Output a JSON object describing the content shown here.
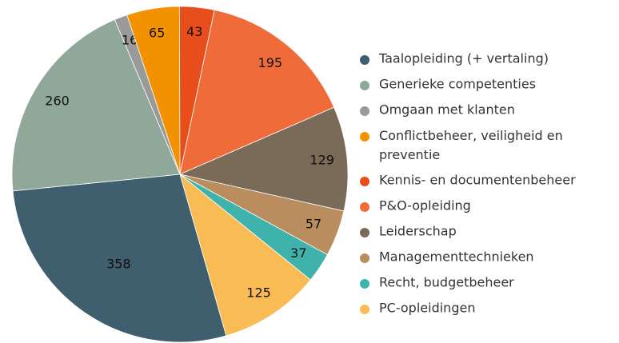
{
  "chart_data": {
    "type": "pie",
    "categories": [
      "Taalopleiding (+ vertaling)",
      "Generieke competenties",
      "Omgaan met klanten",
      "Conflictbeheer, veiligheid en preventie",
      "Kennis- en documentenbeheer",
      "P&O-opleiding",
      "Leiderschap",
      "Managementtechnieken",
      "Recht, budgetbeheer",
      "PC-opleidingen"
    ],
    "values": [
      358,
      260,
      16,
      65,
      43,
      195,
      129,
      57,
      37,
      125
    ],
    "colors": [
      "#3f5e6e",
      "#8fa89a",
      "#9a9a9a",
      "#f39200",
      "#e84e1b",
      "#ef6c3a",
      "#7a6a58",
      "#b98d5e",
      "#3fb3ab",
      "#f9bc55"
    ],
    "start_angle": 164,
    "legend": "right"
  }
}
